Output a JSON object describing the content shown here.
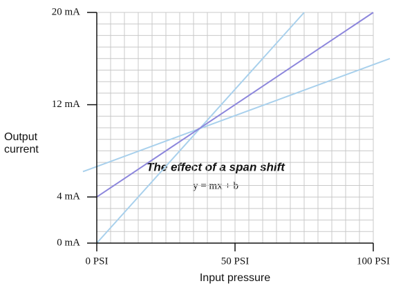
{
  "chart_data": {
    "type": "line",
    "annotations": [
      "The effect of a span shift",
      "y = mx + b"
    ],
    "xlabel": "Input pressure",
    "ylabel": "Output current",
    "xlim": [
      0,
      100
    ],
    "ylim": [
      0,
      20
    ],
    "xticks": [
      {
        "value": 0,
        "label": "0 PSI"
      },
      {
        "value": 50,
        "label": "50 PSI"
      },
      {
        "value": 100,
        "label": "100 PSI"
      }
    ],
    "yticks": [
      {
        "value": 0,
        "label": "0 mA"
      },
      {
        "value": 4,
        "label": "4 mA"
      },
      {
        "value": 12,
        "label": "12 mA"
      },
      {
        "value": 20,
        "label": "20 mA"
      }
    ],
    "grid": true,
    "xgrid": [
      0,
      5,
      10,
      15,
      20,
      25,
      30,
      35,
      40,
      45,
      50,
      55,
      60,
      65,
      70,
      75,
      80,
      85,
      90,
      95,
      100
    ],
    "ygrid": [
      0,
      1,
      2,
      3,
      4,
      5,
      6,
      7,
      8,
      9,
      10,
      11,
      12,
      13,
      14,
      15,
      16,
      17,
      18,
      19,
      20
    ],
    "series": [
      {
        "color": "#a8d0ec",
        "x": [
          -5,
          106
        ],
        "values": [
          6.2,
          16.0
        ]
      },
      {
        "color": "#a8d0ec",
        "x": [
          0,
          75
        ],
        "values": [
          0,
          20
        ]
      },
      {
        "color": "#8c86dc",
        "x": [
          0,
          100
        ],
        "values": [
          4,
          20
        ]
      }
    ]
  }
}
